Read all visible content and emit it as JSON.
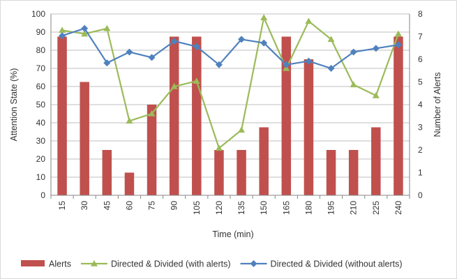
{
  "chart_data": {
    "type": "bar+line",
    "title": "",
    "xlabel": "Time (min)",
    "ylabel": "Attention State (%)",
    "y2label": "Number of Alerts",
    "ylim": [
      0,
      100
    ],
    "y2lim": [
      0,
      8
    ],
    "yticks": [
      0,
      10,
      20,
      30,
      40,
      50,
      60,
      70,
      80,
      90,
      100
    ],
    "y2ticks": [
      0,
      1,
      2,
      3,
      4,
      5,
      6,
      7,
      8
    ],
    "categories": [
      "15",
      "30",
      "45",
      "60",
      "75",
      "90",
      "105",
      "120",
      "135",
      "150",
      "165",
      "180",
      "195",
      "210",
      "225",
      "240"
    ],
    "grid": true,
    "legend": "bottom",
    "series": [
      {
        "name": "Alerts",
        "kind": "bar",
        "axis": "right",
        "color": "#c0504d",
        "values": [
          7,
          5,
          2,
          1,
          4,
          7,
          7,
          2,
          2,
          3,
          7,
          6,
          2,
          2,
          3,
          7
        ]
      },
      {
        "name": "Directed & Divided (with alerts)",
        "kind": "line",
        "axis": "left",
        "marker": "triangle",
        "color": "#9bbb59",
        "values": [
          91,
          89,
          92,
          41,
          45,
          60,
          63,
          26,
          36,
          98,
          70,
          96,
          86,
          61,
          55,
          89
        ]
      },
      {
        "name": "Directed & Divided (without alerts)",
        "kind": "line",
        "axis": "left",
        "marker": "diamond",
        "color": "#4f81bd",
        "values": [
          88,
          92,
          73,
          79,
          76,
          85,
          82,
          72,
          86,
          84,
          72,
          74,
          70,
          79,
          81,
          83
        ]
      }
    ]
  }
}
